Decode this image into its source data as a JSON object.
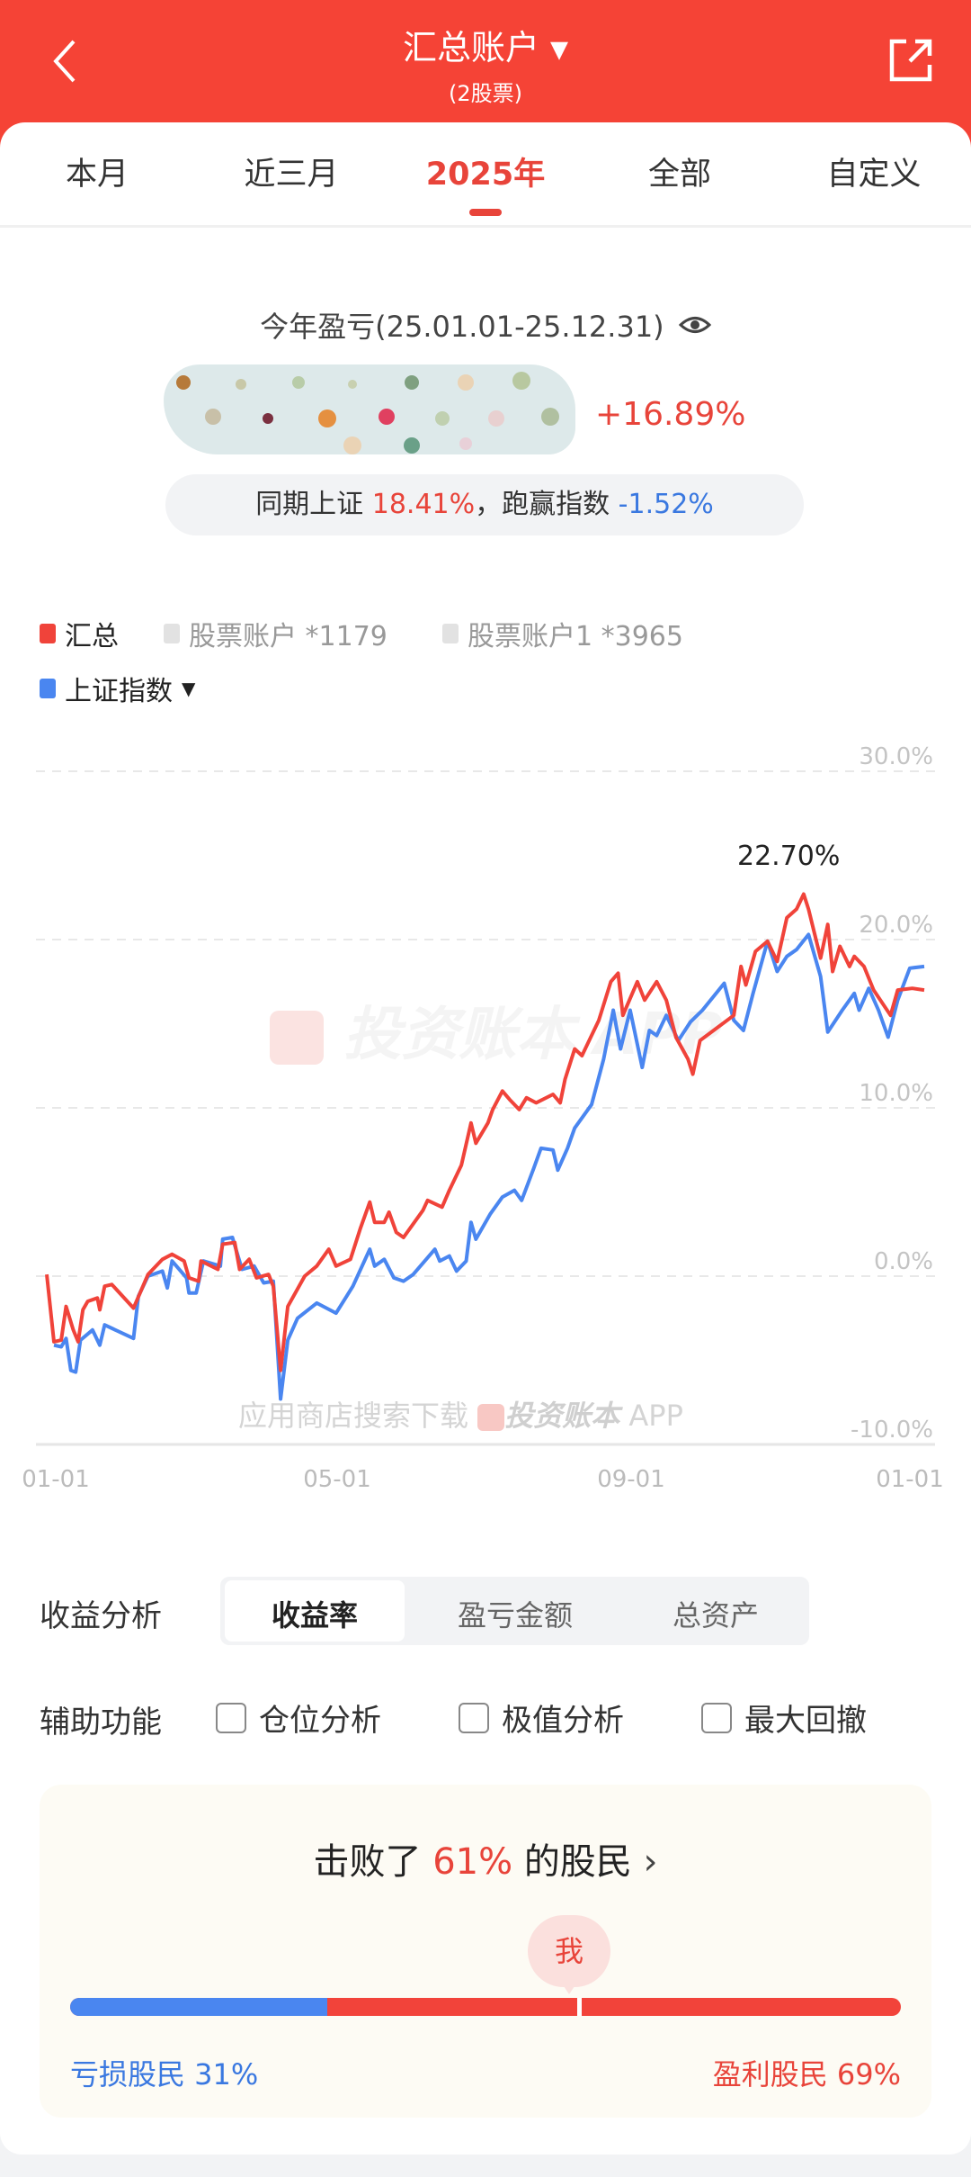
{
  "header": {
    "title": "汇总账户",
    "subtitle": "(2股票)",
    "bg": "#f54336"
  },
  "tabs": [
    {
      "label": "本月"
    },
    {
      "label": "近三月"
    },
    {
      "label": "2025年",
      "active": true
    },
    {
      "label": "全部"
    },
    {
      "label": "自定义"
    }
  ],
  "summary": {
    "title": "今年盈亏(25.01.01-25.12.31)",
    "return_pct": "+16.89%",
    "compare_prefix": "同期上证",
    "index_pct": "18.41%",
    "compare_mid": "，跑赢指数",
    "excess_pct": "-1.52%"
  },
  "legend": {
    "items": [
      {
        "label": "汇总",
        "color": "#f0433a",
        "active": true
      },
      {
        "label": "股票账户 *1179",
        "color": "#e2e2e2",
        "active": false
      },
      {
        "label": "股票账户1 *3965",
        "color": "#e2e2e2",
        "active": false
      },
      {
        "label": "上证指数",
        "color": "#4a86f0",
        "active": true
      }
    ]
  },
  "chart_data": {
    "type": "line",
    "ylim": [
      -10,
      30
    ],
    "yticks": [
      "30.0%",
      "20.0%",
      "10.0%",
      "0.0%",
      "-10.0%"
    ],
    "xticks": [
      "01-01",
      "05-01",
      "09-01",
      "01-01"
    ],
    "grid": true,
    "peak_label": "22.70%",
    "watermark": "投资账本 APP",
    "footer_text": "应用商店搜索下载",
    "footer_brand": "投资账本",
    "footer_app": "APP",
    "series": [
      {
        "name": "汇总",
        "color": "#f0433a",
        "points": [
          [
            "01-01",
            0.1
          ],
          [
            "01-04",
            -3.9
          ],
          [
            "01-07",
            -3.8
          ],
          [
            "01-09",
            -1.8
          ],
          [
            "01-12",
            -3.2
          ],
          [
            "01-14",
            -3.9
          ],
          [
            "01-16",
            -2.0
          ],
          [
            "01-18",
            -1.5
          ],
          [
            "01-22",
            -1.3
          ],
          [
            "01-23",
            -2.0
          ],
          [
            "01-25",
            -0.6
          ],
          [
            "01-28",
            -0.5
          ],
          [
            "02-06",
            -1.9
          ],
          [
            "02-09",
            -0.9
          ],
          [
            "02-12",
            0.1
          ],
          [
            "02-18",
            1.0
          ],
          [
            "02-22",
            1.3
          ],
          [
            "02-27",
            0.9
          ],
          [
            "03-01",
            -0.1
          ],
          [
            "03-05",
            -0.3
          ],
          [
            "03-06",
            0.9
          ],
          [
            "03-13",
            0.4
          ],
          [
            "03-15",
            1.9
          ],
          [
            "03-20",
            2.0
          ],
          [
            "03-22",
            0.4
          ],
          [
            "03-26",
            1.0
          ],
          [
            "03-29",
            -0.1
          ],
          [
            "04-03",
            0.1
          ],
          [
            "04-05",
            -0.6
          ],
          [
            "04-08",
            -5.6
          ],
          [
            "04-11",
            -1.8
          ],
          [
            "04-18",
            0.0
          ],
          [
            "04-23",
            0.6
          ],
          [
            "04-28",
            1.6
          ],
          [
            "05-01",
            0.6
          ],
          [
            "05-07",
            1.0
          ],
          [
            "05-11",
            2.8
          ],
          [
            "05-15",
            4.4
          ],
          [
            "05-17",
            3.2
          ],
          [
            "05-21",
            3.2
          ],
          [
            "05-23",
            3.8
          ],
          [
            "05-26",
            2.6
          ],
          [
            "05-29",
            2.3
          ],
          [
            "06-06",
            3.9
          ],
          [
            "06-08",
            4.5
          ],
          [
            "06-14",
            4.1
          ],
          [
            "06-17",
            5.1
          ],
          [
            "06-22",
            6.6
          ],
          [
            "06-26",
            9.1
          ],
          [
            "06-28",
            7.9
          ],
          [
            "07-03",
            9.1
          ],
          [
            "07-05",
            9.9
          ],
          [
            "07-09",
            11.0
          ],
          [
            "07-12",
            10.5
          ],
          [
            "07-16",
            9.9
          ],
          [
            "07-19",
            10.6
          ],
          [
            "07-23",
            10.3
          ],
          [
            "07-30",
            10.8
          ],
          [
            "08-02",
            10.3
          ],
          [
            "08-04",
            11.7
          ],
          [
            "08-08",
            13.5
          ],
          [
            "08-11",
            13.1
          ],
          [
            "08-14",
            14.0
          ],
          [
            "08-18",
            15.2
          ],
          [
            "08-23",
            17.5
          ],
          [
            "08-26",
            18.0
          ],
          [
            "08-28",
            15.5
          ],
          [
            "09-03",
            17.5
          ],
          [
            "09-06",
            16.4
          ],
          [
            "09-11",
            17.5
          ],
          [
            "09-15",
            16.4
          ],
          [
            "09-19",
            14.2
          ],
          [
            "09-24",
            12.9
          ],
          [
            "09-26",
            12.0
          ],
          [
            "09-29",
            14.0
          ],
          [
            "10-13",
            15.5
          ],
          [
            "10-16",
            18.4
          ],
          [
            "10-18",
            17.3
          ],
          [
            "10-22",
            19.3
          ],
          [
            "10-27",
            19.9
          ],
          [
            "10-31",
            18.7
          ],
          [
            "11-04",
            21.3
          ],
          [
            "11-08",
            21.8
          ],
          [
            "11-11",
            22.7
          ],
          [
            "11-13",
            21.8
          ],
          [
            "11-18",
            18.9
          ],
          [
            "11-21",
            20.9
          ],
          [
            "11-23",
            18.1
          ],
          [
            "11-26",
            19.6
          ],
          [
            "11-30",
            18.4
          ],
          [
            "12-02",
            19.0
          ],
          [
            "12-06",
            18.4
          ],
          [
            "12-10",
            17.0
          ],
          [
            "12-17",
            15.5
          ],
          [
            "12-20",
            17.0
          ],
          [
            "12-26",
            17.1
          ],
          [
            "12-31",
            17.0
          ]
        ]
      },
      {
        "name": "上证指数",
        "color": "#4a86f0",
        "points": [
          [
            "01-04",
            -4.1
          ],
          [
            "01-07",
            -4.2
          ],
          [
            "01-09",
            -3.7
          ],
          [
            "01-11",
            -5.6
          ],
          [
            "01-13",
            -5.7
          ],
          [
            "01-15",
            -3.8
          ],
          [
            "01-20",
            -3.2
          ],
          [
            "01-23",
            -4.1
          ],
          [
            "01-25",
            -2.9
          ],
          [
            "02-06",
            -3.7
          ],
          [
            "02-08",
            -1.2
          ],
          [
            "02-12",
            0.0
          ],
          [
            "02-18",
            0.3
          ],
          [
            "02-20",
            -0.7
          ],
          [
            "02-22",
            0.9
          ],
          [
            "02-28",
            -0.1
          ],
          [
            "03-01",
            -1.0
          ],
          [
            "03-04",
            -1.0
          ],
          [
            "03-07",
            0.9
          ],
          [
            "03-14",
            0.6
          ],
          [
            "03-15",
            2.2
          ],
          [
            "03-19",
            2.3
          ],
          [
            "03-23",
            0.4
          ],
          [
            "03-28",
            0.6
          ],
          [
            "04-01",
            -0.4
          ],
          [
            "04-05",
            -0.3
          ],
          [
            "04-08",
            -7.3
          ],
          [
            "04-11",
            -3.8
          ],
          [
            "04-15",
            -2.5
          ],
          [
            "04-23",
            -1.6
          ],
          [
            "05-01",
            -2.2
          ],
          [
            "05-08",
            -0.6
          ],
          [
            "05-15",
            1.6
          ],
          [
            "05-17",
            0.6
          ],
          [
            "05-21",
            1.0
          ],
          [
            "05-25",
            -0.1
          ],
          [
            "05-29",
            -0.3
          ],
          [
            "06-02",
            0.1
          ],
          [
            "06-11",
            1.6
          ],
          [
            "06-13",
            0.9
          ],
          [
            "06-17",
            1.2
          ],
          [
            "06-20",
            0.3
          ],
          [
            "06-24",
            0.9
          ],
          [
            "06-26",
            3.2
          ],
          [
            "06-28",
            2.2
          ],
          [
            "07-04",
            3.7
          ],
          [
            "07-09",
            4.7
          ],
          [
            "07-14",
            5.1
          ],
          [
            "07-17",
            4.5
          ],
          [
            "07-22",
            6.4
          ],
          [
            "07-25",
            7.6
          ],
          [
            "07-30",
            7.5
          ],
          [
            "08-01",
            6.3
          ],
          [
            "08-05",
            7.6
          ],
          [
            "08-08",
            8.8
          ],
          [
            "08-11",
            9.4
          ],
          [
            "08-15",
            10.2
          ],
          [
            "08-20",
            12.9
          ],
          [
            "08-24",
            15.8
          ],
          [
            "08-27",
            13.5
          ],
          [
            "08-31",
            15.8
          ],
          [
            "09-05",
            12.4
          ],
          [
            "09-08",
            14.6
          ],
          [
            "09-11",
            14.3
          ],
          [
            "09-15",
            15.5
          ],
          [
            "09-20",
            14.0
          ],
          [
            "09-25",
            15.1
          ],
          [
            "09-30",
            15.8
          ],
          [
            "10-09",
            17.4
          ],
          [
            "10-13",
            15.2
          ],
          [
            "10-17",
            14.6
          ],
          [
            "10-21",
            16.8
          ],
          [
            "10-27",
            19.9
          ],
          [
            "10-31",
            18.1
          ],
          [
            "11-04",
            19.0
          ],
          [
            "11-08",
            19.4
          ],
          [
            "11-13",
            20.3
          ],
          [
            "11-18",
            17.8
          ],
          [
            "11-21",
            14.5
          ],
          [
            "11-27",
            15.8
          ],
          [
            "12-02",
            16.8
          ],
          [
            "12-04",
            15.8
          ],
          [
            "12-08",
            17.1
          ],
          [
            "12-12",
            15.8
          ],
          [
            "12-16",
            14.2
          ],
          [
            "12-20",
            16.4
          ],
          [
            "12-25",
            18.3
          ],
          [
            "12-31",
            18.4
          ]
        ]
      }
    ]
  },
  "analysis": {
    "label": "收益分析",
    "options": [
      {
        "label": "收益率",
        "active": true
      },
      {
        "label": "盈亏金额"
      },
      {
        "label": "总资产"
      }
    ]
  },
  "aux": {
    "label": "辅助功能",
    "options": [
      {
        "label": "仓位分析",
        "checked": false
      },
      {
        "label": "极值分析",
        "checked": false
      },
      {
        "label": "最大回撤",
        "checked": false
      }
    ]
  },
  "rank": {
    "prefix": "击败了",
    "pct": "61%",
    "suffix": "的股民",
    "me_label": "我",
    "loss_label": "亏损股民 31%",
    "profit_label": "盈利股民 69%",
    "loss_share": 31,
    "me_position": 61
  }
}
